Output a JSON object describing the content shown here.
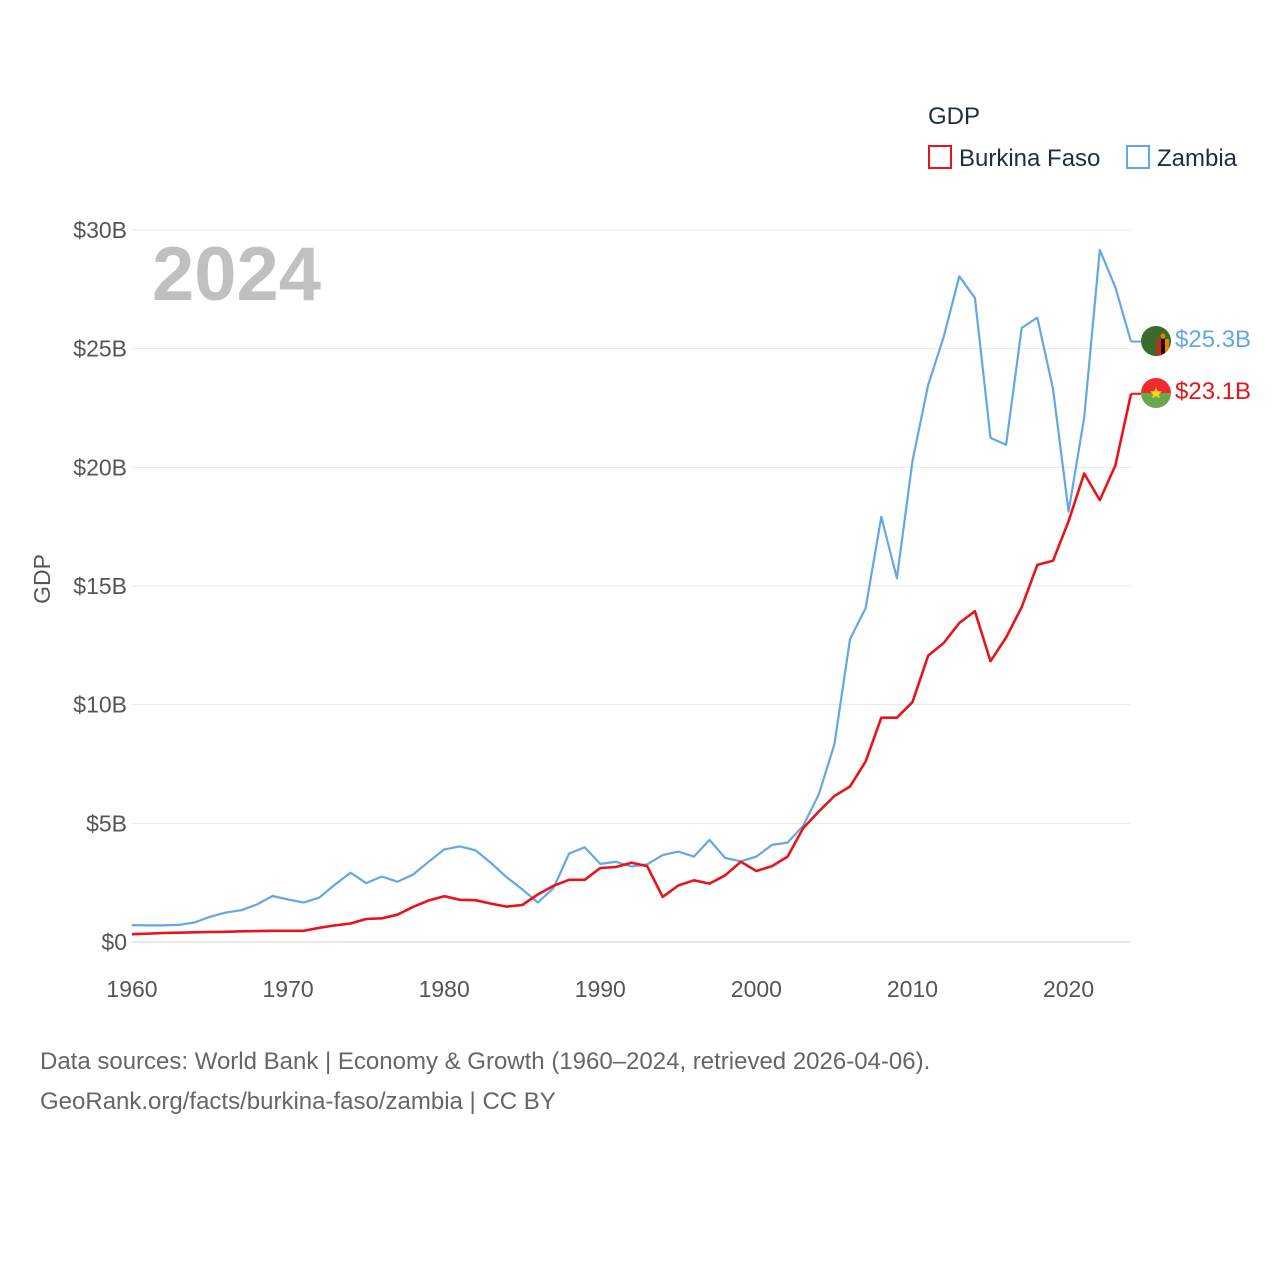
{
  "chart_data": {
    "type": "line",
    "title": "",
    "xlabel": "",
    "ylabel": "GDP",
    "xlim": [
      1960,
      2024
    ],
    "ylim": [
      0,
      30
    ],
    "y_unit": "billion USD",
    "x_ticks": [
      1960,
      1970,
      1980,
      1990,
      2000,
      2010,
      2020
    ],
    "y_ticks": [
      {
        "value": 0,
        "label": "$0"
      },
      {
        "value": 5,
        "label": "$5B"
      },
      {
        "value": 10,
        "label": "$10B"
      },
      {
        "value": 15,
        "label": "$15B"
      },
      {
        "value": 20,
        "label": "$20B"
      },
      {
        "value": 25,
        "label": "$25B"
      },
      {
        "value": 30,
        "label": "$30B"
      }
    ],
    "grid": true,
    "year_label": "2024",
    "legend": {
      "title": "GDP",
      "position": "top-right"
    },
    "x": [
      1960,
      1961,
      1962,
      1963,
      1964,
      1965,
      1966,
      1967,
      1968,
      1969,
      1970,
      1971,
      1972,
      1973,
      1974,
      1975,
      1976,
      1977,
      1978,
      1979,
      1980,
      1981,
      1982,
      1983,
      1984,
      1985,
      1986,
      1987,
      1988,
      1989,
      1990,
      1991,
      1992,
      1993,
      1994,
      1995,
      1996,
      1997,
      1998,
      1999,
      2000,
      2001,
      2002,
      2003,
      2004,
      2005,
      2006,
      2007,
      2008,
      2009,
      2010,
      2011,
      2012,
      2013,
      2014,
      2015,
      2016,
      2017,
      2018,
      2019,
      2020,
      2021,
      2022,
      2023,
      2024
    ],
    "series": [
      {
        "name": "Burkina Faso",
        "color": "#e8141a",
        "end_label": "$23.1B",
        "values": [
          0.33,
          0.35,
          0.38,
          0.39,
          0.41,
          0.42,
          0.43,
          0.45,
          0.46,
          0.47,
          0.47,
          0.47,
          0.6,
          0.7,
          0.78,
          0.97,
          1.0,
          1.15,
          1.48,
          1.75,
          1.93,
          1.78,
          1.76,
          1.62,
          1.49,
          1.56,
          2.0,
          2.37,
          2.62,
          2.62,
          3.12,
          3.16,
          3.34,
          3.2,
          1.9,
          2.38,
          2.6,
          2.46,
          2.81,
          3.38,
          2.99,
          3.2,
          3.6,
          4.8,
          5.5,
          6.15,
          6.55,
          7.6,
          9.45,
          9.45,
          10.11,
          12.06,
          12.6,
          13.44,
          13.94,
          11.83,
          12.83,
          14.11,
          15.89,
          16.06,
          17.73,
          19.74,
          18.62,
          20.08,
          23.1
        ]
      },
      {
        "name": "Zambia",
        "color": "#64a7e6",
        "end_label": "$25.3B",
        "values": [
          0.71,
          0.7,
          0.7,
          0.72,
          0.82,
          1.06,
          1.24,
          1.34,
          1.58,
          1.94,
          1.79,
          1.66,
          1.87,
          2.42,
          2.92,
          2.48,
          2.76,
          2.54,
          2.84,
          3.38,
          3.9,
          4.03,
          3.87,
          3.33,
          2.73,
          2.22,
          1.66,
          2.27,
          3.73,
          3.99,
          3.29,
          3.38,
          3.18,
          3.27,
          3.66,
          3.81,
          3.6,
          4.3,
          3.54,
          3.4,
          3.6,
          4.09,
          4.19,
          4.9,
          6.22,
          8.33,
          12.76,
          14.06,
          17.91,
          15.33,
          20.27,
          23.46,
          25.5,
          28.05,
          27.14,
          21.24,
          20.95,
          25.87,
          26.31,
          23.31,
          18.14,
          22.1,
          29.16,
          27.58,
          25.3
        ]
      }
    ]
  },
  "footer": {
    "line1": "Data sources: World Bank | Economy & Growth (1960–2024, retrieved 2026-04-06).",
    "line2": "GeoRank.org/facts/burkina-faso/zambia | CC BY"
  }
}
